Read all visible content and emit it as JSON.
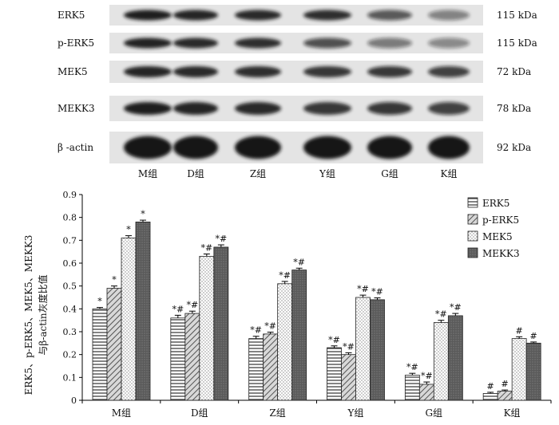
{
  "blot": {
    "rows": [
      {
        "label": "ERK5",
        "kda": "115 kDa",
        "intensity": [
          0.95,
          0.9,
          0.88,
          0.85,
          0.55,
          0.3
        ]
      },
      {
        "label": "p-ERK5",
        "kda": "115  kDa",
        "intensity": [
          0.92,
          0.88,
          0.85,
          0.6,
          0.35,
          0.25
        ]
      },
      {
        "label": "MEK5",
        "kda": "72 kDa",
        "intensity": [
          0.9,
          0.88,
          0.85,
          0.8,
          0.75,
          0.7
        ]
      },
      {
        "label": "MEKK3",
        "kda": "78 kDa",
        "intensity": [
          0.95,
          0.9,
          0.88,
          0.8,
          0.75,
          0.7
        ]
      },
      {
        "label": "β -actin",
        "kda": "92 kDa",
        "intensity": [
          1.0,
          1.0,
          1.0,
          1.0,
          1.0,
          1.0
        ]
      }
    ],
    "lanes": [
      "M组",
      "D组",
      "Z组",
      "Y组",
      "G组",
      "K组"
    ]
  },
  "chart_data": {
    "type": "bar",
    "categories": [
      "M组",
      "D组",
      "Z组",
      "Y组",
      "G组",
      "K组"
    ],
    "ylabel_line1": "ERK5、p-ERK5、MEK5、MEKK3",
    "ylabel_line2": "与β-actin灰度比值",
    "ylim": [
      0,
      0.9
    ],
    "yticks": [
      "0",
      "0.1",
      "0.2",
      "0.3",
      "0.4",
      "0.5",
      "0.6",
      "0.7",
      "0.8",
      "0.9"
    ],
    "legend_position": "top-right",
    "series": [
      {
        "name": "ERK5",
        "pattern": "horizontal-lines",
        "values": [
          0.4,
          0.36,
          0.27,
          0.23,
          0.11,
          0.03
        ],
        "errors": [
          0.006,
          0.012,
          0.01,
          0.008,
          0.008,
          0.005
        ],
        "marks": [
          "*",
          "*#",
          "*#",
          "*#",
          "*#",
          "#"
        ]
      },
      {
        "name": "p-ERK5",
        "pattern": "diagonal-lines",
        "values": [
          0.49,
          0.38,
          0.29,
          0.2,
          0.07,
          0.04
        ],
        "errors": [
          0.01,
          0.01,
          0.008,
          0.008,
          0.01,
          0.005
        ],
        "marks": [
          "*",
          "*#",
          "*#",
          "*#",
          "*#",
          "#"
        ]
      },
      {
        "name": "MEK5",
        "pattern": "dots",
        "values": [
          0.71,
          0.63,
          0.51,
          0.45,
          0.34,
          0.27
        ],
        "errors": [
          0.01,
          0.01,
          0.01,
          0.01,
          0.01,
          0.008
        ],
        "marks": [
          "*",
          "*#",
          "*#",
          "*#",
          "*#",
          "#"
        ]
      },
      {
        "name": "MEKK3",
        "pattern": "dark-stipple",
        "values": [
          0.78,
          0.67,
          0.57,
          0.44,
          0.37,
          0.25
        ],
        "errors": [
          0.008,
          0.01,
          0.008,
          0.008,
          0.01,
          0.005
        ],
        "marks": [
          "*",
          "*#",
          "*#",
          "*#",
          "*#",
          "#"
        ]
      }
    ]
  }
}
